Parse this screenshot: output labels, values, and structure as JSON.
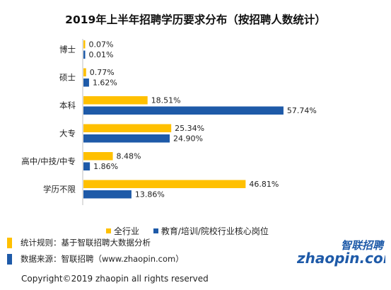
{
  "chart_data": {
    "type": "bar",
    "orientation": "horizontal",
    "title": "2019年上半年招聘学历要求分布（按招聘人数统计）",
    "categories": [
      "博士",
      "硕士",
      "本科",
      "大专",
      "高中/中技/中专",
      "学历不限"
    ],
    "series": [
      {
        "name": "全行业",
        "color": "#FFC000",
        "values": [
          0.07,
          0.77,
          18.51,
          25.34,
          8.48,
          46.81
        ],
        "labels": [
          "0.07%",
          "0.77%",
          "18.51%",
          "25.34%",
          "8.48%",
          "46.81%"
        ]
      },
      {
        "name": "教育/培训/院校行业核心岗位",
        "color": "#1E5AA8",
        "values": [
          0.01,
          1.62,
          57.74,
          24.9,
          1.86,
          13.86
        ],
        "labels": [
          "0.01%",
          "1.62%",
          "57.74%",
          "24.90%",
          "1.86%",
          "13.86%"
        ]
      }
    ],
    "xlim": [
      0,
      60
    ],
    "legend_position": "bottom",
    "grid": false
  },
  "notes": {
    "rule": "统计规则：基于智联招聘大数据分析",
    "source": "数据来源：智联招聘（www.zhaopin.com）",
    "rule_mark_color": "#FFC000",
    "source_mark_color": "#1E5AA8"
  },
  "logo": {
    "text": "智联招聘",
    "domain_text": "zhaopin.com",
    "color": "#1E5AA8"
  },
  "copyright": "Copyright©2019 zhaopin all rights reserved"
}
